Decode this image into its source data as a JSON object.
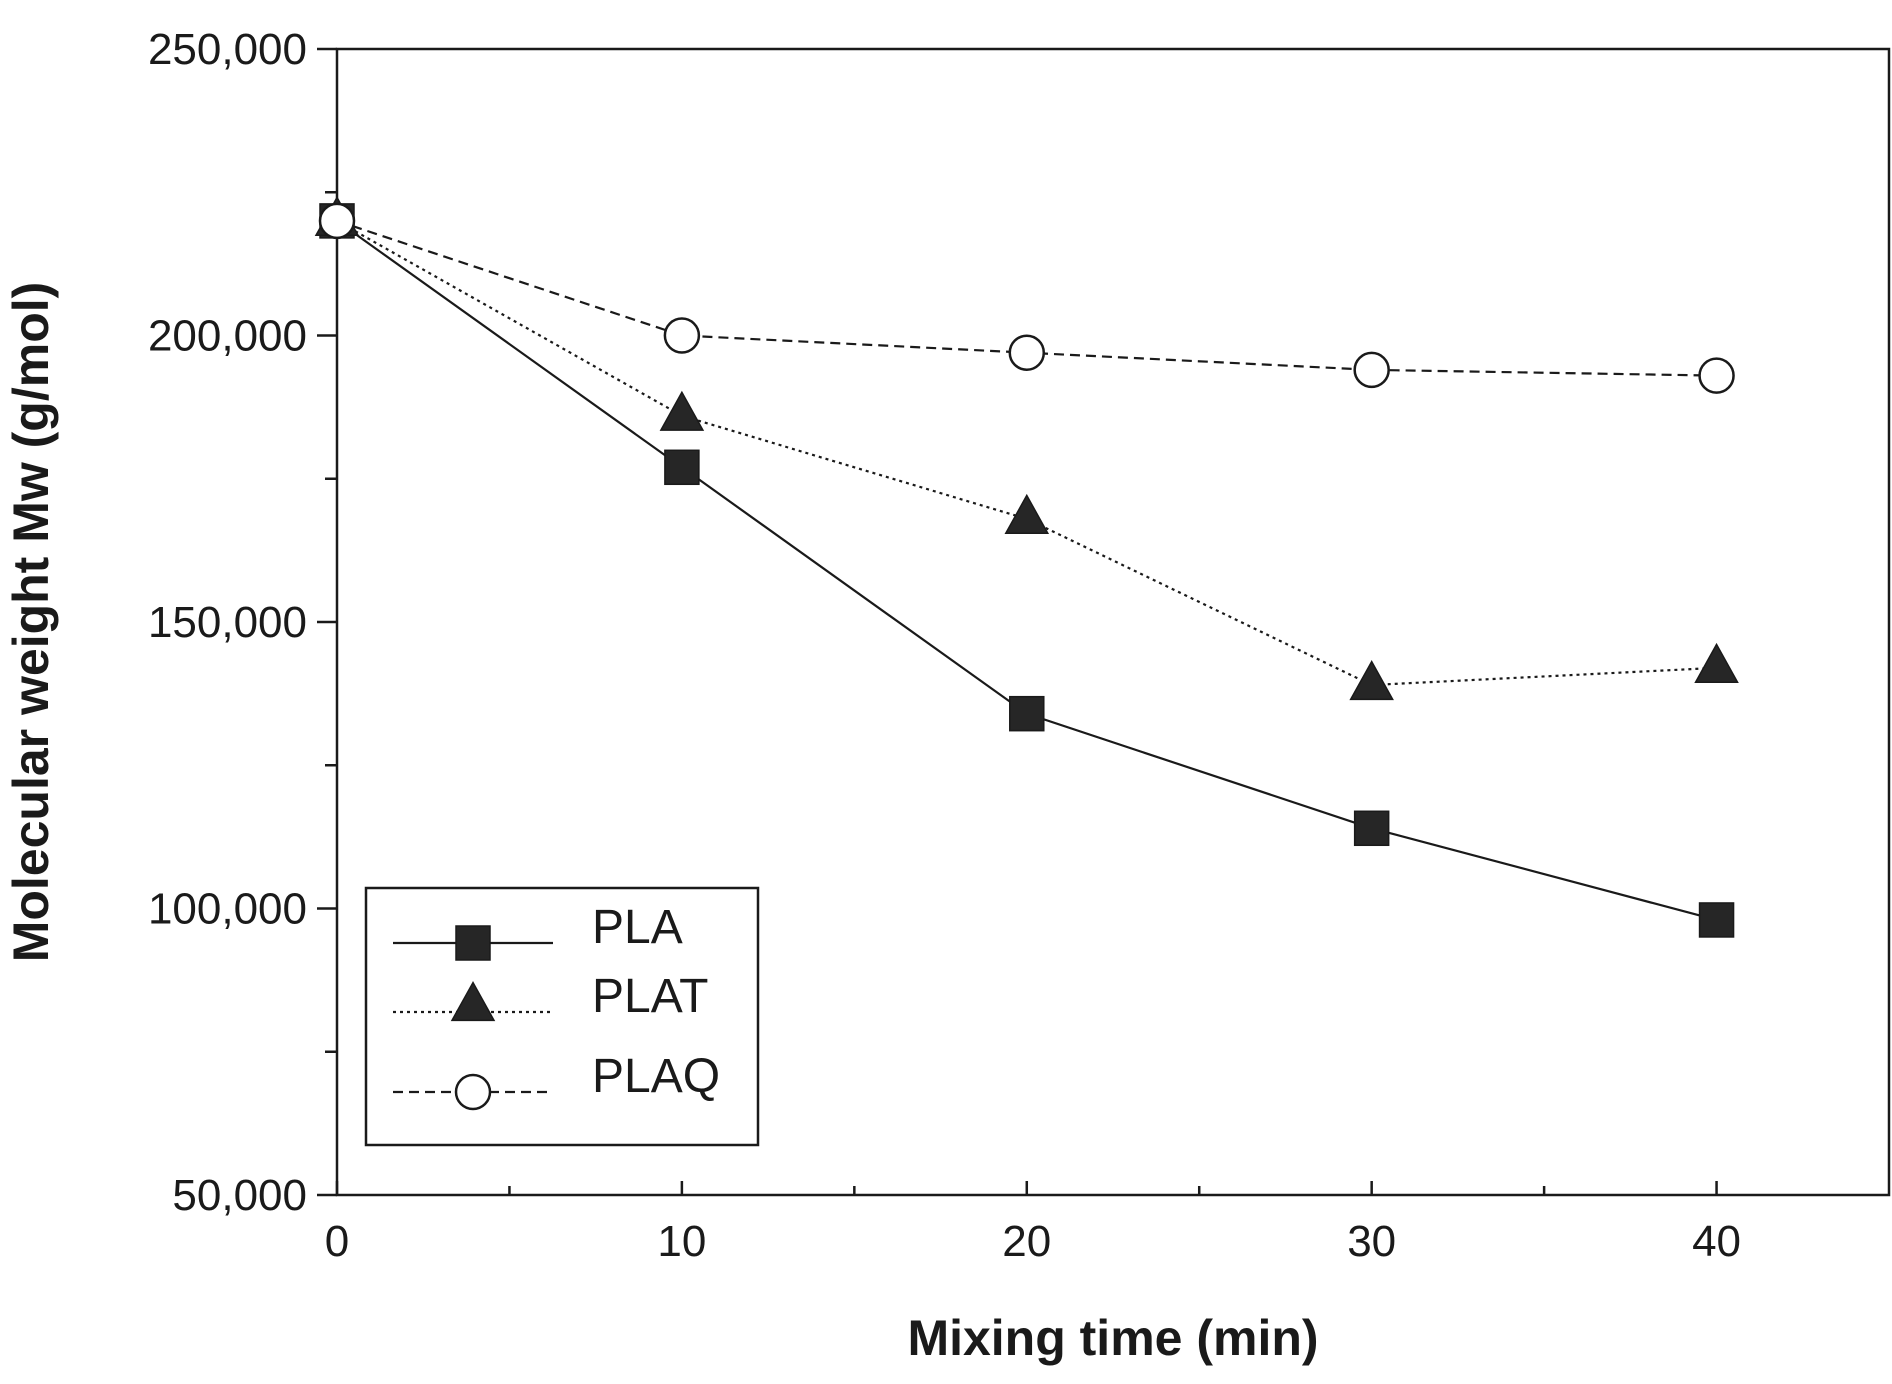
{
  "chart_data": {
    "type": "line",
    "xlabel": "Mixing time (min)",
    "ylabel": "Molecular weight Mw (g/mol)",
    "xlim": [
      0,
      45
    ],
    "ylim": [
      50000,
      250000
    ],
    "x_ticks": [
      0,
      10,
      20,
      30,
      40
    ],
    "x_tick_labels": [
      "0",
      "10",
      "20",
      "30",
      "40"
    ],
    "x_minor_ticks": [
      5,
      15,
      25,
      35
    ],
    "y_ticks": [
      50000,
      100000,
      150000,
      200000,
      250000
    ],
    "y_tick_labels": [
      "50,000",
      "100,000",
      "150,000",
      "200,000",
      "250,000"
    ],
    "y_minor_ticks": [
      75000,
      125000,
      175000,
      225000
    ],
    "grid": false,
    "legend_position": "bottom-left",
    "x": [
      0,
      10,
      20,
      30,
      40
    ],
    "series": [
      {
        "name": "PLA",
        "marker": "filled-square",
        "line_style": "solid",
        "values": [
          220000,
          177000,
          134000,
          114000,
          98000
        ]
      },
      {
        "name": "PLAT",
        "marker": "filled-triangle",
        "line_style": "dotted",
        "values": [
          220000,
          186000,
          168000,
          139000,
          142000
        ]
      },
      {
        "name": "PLAQ",
        "marker": "open-circle",
        "line_style": "dashed",
        "values": [
          220000,
          200000,
          197000,
          194000,
          193000
        ]
      }
    ],
    "colors": {
      "line": "#1a1a1a",
      "marker_fill": "#262626",
      "background": "#ffffff"
    }
  }
}
